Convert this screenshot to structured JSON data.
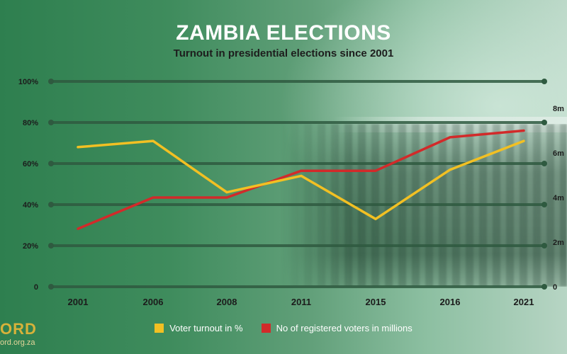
{
  "header": {
    "title": "ZAMBIA ELECTIONS",
    "subtitle": "Turnout in presidential elections since 2001"
  },
  "branding": {
    "logo_text": "ORD",
    "url_text": "ord.org.za"
  },
  "colors": {
    "turnout": "#f2c023",
    "registered": "#d22a2a",
    "gridline": "#2f5a40"
  },
  "legend": {
    "turnout_label": "Voter turnout in %",
    "registered_label": "No of registered voters in millions"
  },
  "chart_data": {
    "type": "line",
    "categories": [
      "2001",
      "2006",
      "2008",
      "2011",
      "2015",
      "2016",
      "2021"
    ],
    "y_left": {
      "ticks": [
        "0",
        "20%",
        "40%",
        "60%",
        "80%",
        "100%"
      ],
      "tick_values": [
        0,
        20,
        40,
        60,
        80,
        100
      ],
      "ylim": [
        0,
        100
      ]
    },
    "y_right": {
      "ticks": [
        "0",
        "2m",
        "4m",
        "6m",
        "8m"
      ],
      "tick_values": [
        0,
        2,
        4,
        6,
        8
      ],
      "ylim": [
        0,
        8
      ]
    },
    "grid": true,
    "legend_position": "bottom",
    "series": [
      {
        "name": "Voter turnout in %",
        "axis": "left",
        "values": [
          68,
          71,
          46,
          54,
          33,
          57,
          71
        ]
      },
      {
        "name": "No of registered voters in millions",
        "axis": "right",
        "values": [
          2.6,
          4.0,
          4.0,
          5.2,
          5.2,
          6.7,
          7.0
        ]
      }
    ]
  }
}
